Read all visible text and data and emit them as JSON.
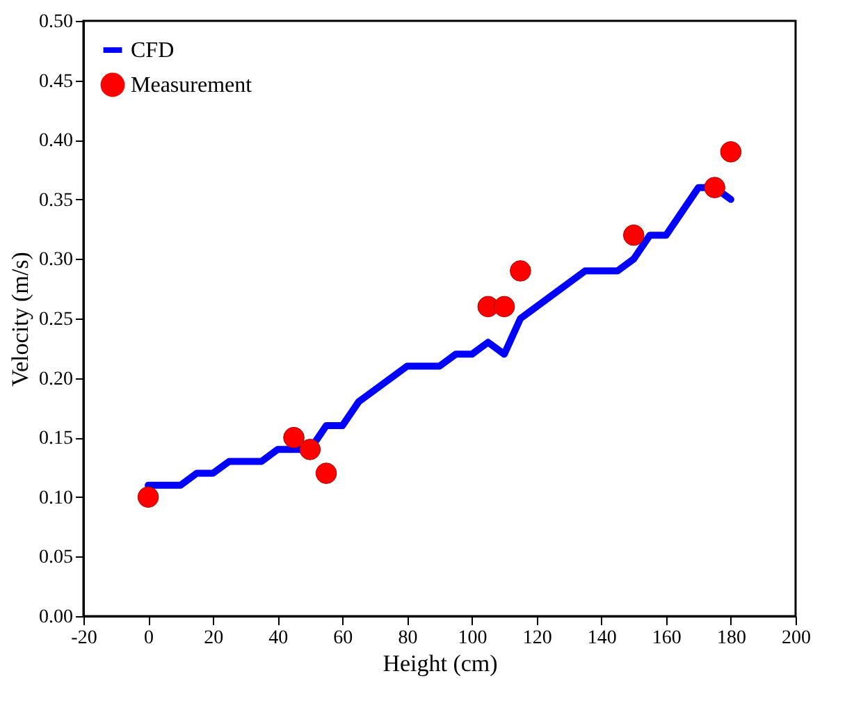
{
  "chart_data": {
    "type": "line",
    "xlabel": "Height (cm)",
    "ylabel": "Velocity (m/s)",
    "xlim": [
      -20,
      200
    ],
    "xticks": [
      -20,
      0,
      20,
      40,
      60,
      80,
      100,
      120,
      140,
      160,
      180,
      200
    ],
    "ylim": [
      0,
      0.5
    ],
    "yticks": [
      {
        "value": 0,
        "label": "0.00"
      },
      0.05,
      {
        "value": 0.1,
        "label": "0.10"
      },
      0.15,
      {
        "value": 0.2,
        "label": "0.20"
      },
      0.25,
      {
        "value": 0.3,
        "label": "0.30"
      },
      0.35,
      {
        "value": 0.4,
        "label": "0.40"
      },
      0.45,
      {
        "value": 0.5,
        "label": "0.50"
      }
    ],
    "grid": false,
    "legend": "top left",
    "series": [
      {
        "name": "CFD",
        "color": "#0000ff",
        "marker": "none",
        "line_style": "solid",
        "x": [
          0,
          10,
          15,
          20,
          25,
          35,
          40,
          50,
          55,
          60,
          65,
          80,
          90,
          95,
          100,
          105,
          110,
          115,
          135,
          145,
          150,
          155,
          160,
          170,
          175,
          180
        ],
        "values": [
          0.11,
          0.11,
          0.12,
          0.12,
          0.13,
          0.13,
          0.14,
          0.14,
          0.16,
          0.16,
          0.18,
          0.21,
          0.21,
          0.22,
          0.22,
          0.23,
          0.22,
          0.25,
          0.29,
          0.29,
          0.3,
          0.32,
          0.32,
          0.36,
          0.36,
          0.35
        ]
      },
      {
        "name": "Measurement",
        "type": "scatter",
        "color": "#ff0000",
        "marker": "circle",
        "x": [
          0,
          45,
          50,
          55,
          105,
          110,
          115,
          150,
          175,
          180
        ],
        "values": [
          0.1,
          0.15,
          0.14,
          0.12,
          0.26,
          0.26,
          0.29,
          0.32,
          0.36,
          0.39
        ]
      }
    ]
  }
}
